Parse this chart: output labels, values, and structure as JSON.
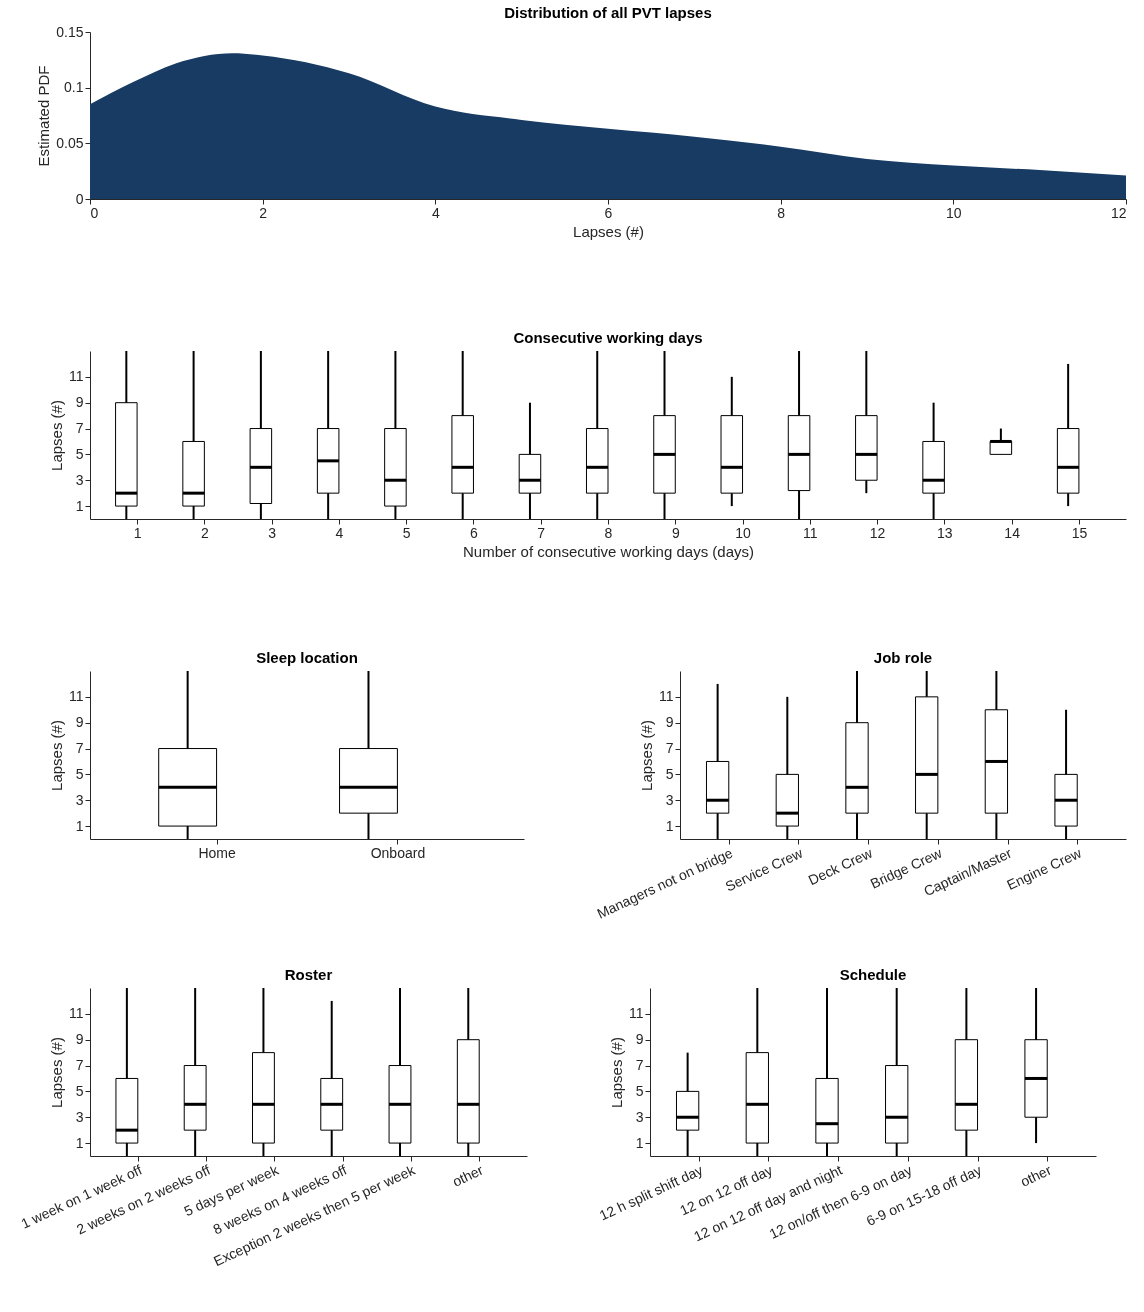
{
  "chart_data": [
    {
      "type": "area",
      "title": "Distribution of all PVT lapses",
      "xlabel": "Lapses (#)",
      "ylabel": "Estimated PDF",
      "color": "#173b63",
      "x": [
        0,
        0.5,
        1,
        1.65,
        2,
        3,
        4,
        5,
        6,
        7,
        8,
        9,
        10,
        11,
        12
      ],
      "values": [
        0.085,
        0.105,
        0.122,
        0.131,
        0.129,
        0.113,
        0.083,
        0.071,
        0.063,
        0.056,
        0.047,
        0.036,
        0.03,
        0.026,
        0.021
      ],
      "xlim": [
        0,
        12
      ],
      "xticks": [
        0,
        2,
        4,
        6,
        8,
        10,
        12
      ],
      "ylim": [
        0,
        0.15
      ],
      "yticks": [
        0,
        0.05,
        0.1,
        0.15
      ]
    },
    {
      "type": "box",
      "title": "Consecutive working days",
      "xlabel": "Number of consecutive working days (days)",
      "ylabel": "Lapses (#)",
      "categories": [
        "1",
        "2",
        "3",
        "4",
        "5",
        "6",
        "7",
        "8",
        "9",
        "10",
        "11",
        "12",
        "13",
        "14",
        "15"
      ],
      "ylim": [
        0,
        13
      ],
      "yticks": [
        1,
        3,
        5,
        7,
        9,
        11
      ],
      "boxes": [
        {
          "low": 0,
          "q1": 1,
          "median": 2,
          "q3": 9,
          "high": 13
        },
        {
          "low": 0,
          "q1": 1,
          "median": 2,
          "q3": 6,
          "high": 13
        },
        {
          "low": 0,
          "q1": 1.2,
          "median": 4,
          "q3": 7,
          "high": 13
        },
        {
          "low": 0,
          "q1": 2,
          "median": 4.5,
          "q3": 7,
          "high": 13
        },
        {
          "low": 0,
          "q1": 1,
          "median": 3,
          "q3": 7,
          "high": 13
        },
        {
          "low": 0,
          "q1": 2,
          "median": 4,
          "q3": 8,
          "high": 13
        },
        {
          "low": 0,
          "q1": 2,
          "median": 3,
          "q3": 5,
          "high": 9
        },
        {
          "low": 0,
          "q1": 2,
          "median": 4,
          "q3": 7,
          "high": 13
        },
        {
          "low": 0,
          "q1": 2,
          "median": 5,
          "q3": 8,
          "high": 13
        },
        {
          "low": 1,
          "q1": 2,
          "median": 4,
          "q3": 8,
          "high": 11
        },
        {
          "low": 0,
          "q1": 2.2,
          "median": 5,
          "q3": 8,
          "high": 13
        },
        {
          "low": 2,
          "q1": 3,
          "median": 5,
          "q3": 8,
          "high": 13
        },
        {
          "low": 0,
          "q1": 2,
          "median": 3,
          "q3": 6,
          "high": 9
        },
        {
          "low": 5,
          "q1": 5,
          "median": 6,
          "q3": 6,
          "high": 7
        },
        {
          "low": 1,
          "q1": 2,
          "median": 4,
          "q3": 7,
          "high": 12
        }
      ]
    },
    {
      "type": "box",
      "title": "Sleep location",
      "ylabel": "Lapses (#)",
      "categories": [
        "Home",
        "Onboard"
      ],
      "ylim": [
        0,
        13
      ],
      "yticks": [
        1,
        3,
        5,
        7,
        9,
        11
      ],
      "boxes": [
        {
          "low": 0,
          "q1": 1,
          "median": 4,
          "q3": 7,
          "high": 13
        },
        {
          "low": 0,
          "q1": 2,
          "median": 4,
          "q3": 7,
          "high": 13
        }
      ]
    },
    {
      "type": "box",
      "title": "Job role",
      "ylabel": "Lapses (#)",
      "categories": [
        "Managers not on bridge",
        "Service Crew",
        "Deck Crew",
        "Bridge Crew",
        "Captain/Master",
        "Engine Crew"
      ],
      "ylim": [
        0,
        13
      ],
      "yticks": [
        1,
        3,
        5,
        7,
        9,
        11
      ],
      "boxes": [
        {
          "low": 0,
          "q1": 2,
          "median": 3,
          "q3": 6,
          "high": 12
        },
        {
          "low": 0,
          "q1": 1,
          "median": 2,
          "q3": 5,
          "high": 11
        },
        {
          "low": 0,
          "q1": 2,
          "median": 4,
          "q3": 9,
          "high": 13
        },
        {
          "low": 0,
          "q1": 2,
          "median": 5,
          "q3": 11,
          "high": 13
        },
        {
          "low": 0,
          "q1": 2,
          "median": 6,
          "q3": 10,
          "high": 13
        },
        {
          "low": 0,
          "q1": 1,
          "median": 3,
          "q3": 5,
          "high": 10
        }
      ]
    },
    {
      "type": "box",
      "title": "Roster",
      "ylabel": "Lapses (#)",
      "categories": [
        "1 week on 1 week off",
        "2 weeks on 2 weeks off",
        "5 days per week",
        "8 weeks on 4 weeks off",
        "Exception 2 weeks then 5 per week",
        "other"
      ],
      "ylim": [
        0,
        13
      ],
      "yticks": [
        1,
        3,
        5,
        7,
        9,
        11
      ],
      "boxes": [
        {
          "low": 0,
          "q1": 1,
          "median": 2,
          "q3": 6,
          "high": 13
        },
        {
          "low": 0,
          "q1": 2,
          "median": 4,
          "q3": 7,
          "high": 13
        },
        {
          "low": 0,
          "q1": 1,
          "median": 4,
          "q3": 8,
          "high": 13
        },
        {
          "low": 0,
          "q1": 2,
          "median": 4,
          "q3": 6,
          "high": 12
        },
        {
          "low": 0,
          "q1": 1,
          "median": 4,
          "q3": 7,
          "high": 13
        },
        {
          "low": 0,
          "q1": 1,
          "median": 4,
          "q3": 9,
          "high": 13
        }
      ]
    },
    {
      "type": "box",
      "title": "Schedule",
      "ylabel": "Lapses (#)",
      "categories": [
        "12 h split shift day",
        "12 on 12 off day",
        "12 on 12 off day and night",
        "12 on/off then 6-9 on day",
        "6-9 on 15-18 off day",
        "other"
      ],
      "ylim": [
        0,
        13
      ],
      "yticks": [
        1,
        3,
        5,
        7,
        9,
        11
      ],
      "boxes": [
        {
          "low": 0,
          "q1": 2,
          "median": 3,
          "q3": 5,
          "high": 8
        },
        {
          "low": 0,
          "q1": 1,
          "median": 4,
          "q3": 8,
          "high": 13
        },
        {
          "low": 0,
          "q1": 1,
          "median": 2.5,
          "q3": 6,
          "high": 13
        },
        {
          "low": 0,
          "q1": 1,
          "median": 3,
          "q3": 7,
          "high": 13
        },
        {
          "low": 0,
          "q1": 2,
          "median": 4,
          "q3": 9,
          "high": 13
        },
        {
          "low": 1,
          "q1": 3,
          "median": 6,
          "q3": 9,
          "high": 13
        }
      ]
    }
  ]
}
